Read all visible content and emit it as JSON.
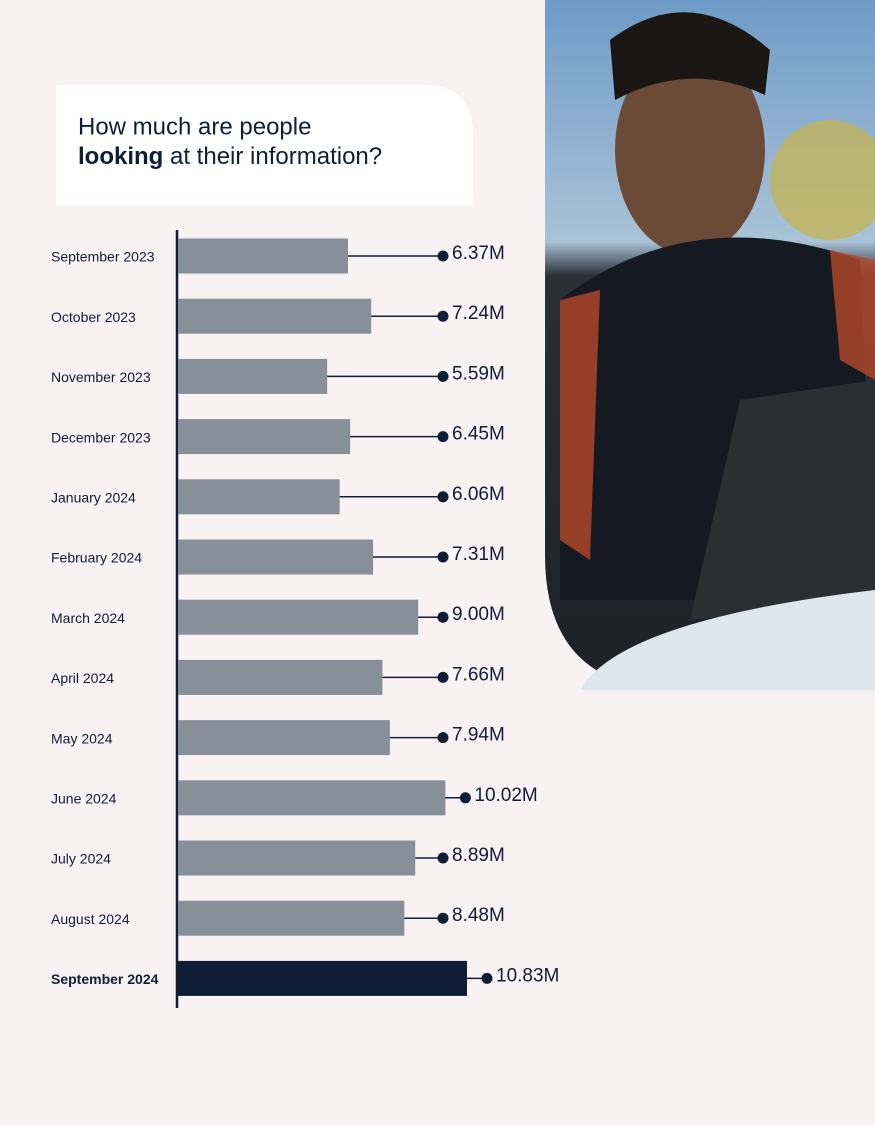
{
  "chart_data": {
    "type": "bar",
    "orientation": "horizontal",
    "title": [
      "How much are people",
      "looking",
      "at their information?"
    ],
    "categories": [
      "September 2023",
      "October 2023",
      "November 2023",
      "December 2023",
      "January 2024",
      "February 2024",
      "March 2024",
      "April 2024",
      "May 2024",
      "June 2024",
      "July 2024",
      "August 2024",
      "September 2024"
    ],
    "values": [
      6.37,
      7.24,
      5.59,
      6.45,
      6.06,
      7.31,
      9.0,
      7.66,
      7.94,
      10.02,
      8.89,
      8.48,
      10.83
    ],
    "value_labels": [
      "6.37M",
      "7.24M",
      "5.59M",
      "6.45M",
      "6.06M",
      "7.31M",
      "9.00M",
      "7.66M",
      "7.94M",
      "10.02M",
      "8.89M",
      "8.48M",
      "10.83M"
    ],
    "colors": [
      "#878f99",
      "#878f99",
      "#878f99",
      "#878f99",
      "#878f99",
      "#878f99",
      "#878f99",
      "#878f99",
      "#878f99",
      "#878f99",
      "#878f99",
      "#878f99",
      "#0f1d36"
    ]
  }
}
